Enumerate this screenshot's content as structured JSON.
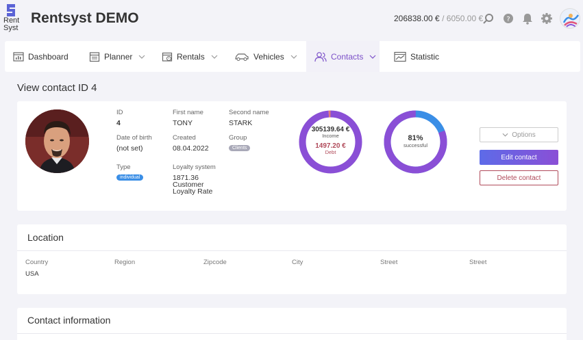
{
  "header": {
    "logo_line1": "Rent",
    "logo_line2": "Syst",
    "app_title": "Rentsyst DEMO",
    "balance_primary": "206838.00 €",
    "balance_separator": "/",
    "balance_secondary": "6050.00 €"
  },
  "nav": {
    "items": [
      {
        "label": "Dashboard",
        "icon": "dashboard-icon"
      },
      {
        "label": "Planner",
        "icon": "planner-icon"
      },
      {
        "label": "Rentals",
        "icon": "rentals-icon"
      },
      {
        "label": "Vehicles",
        "icon": "car-icon"
      },
      {
        "label": "Contacts",
        "icon": "contacts-icon"
      },
      {
        "label": "Statistic",
        "icon": "statistic-icon"
      }
    ],
    "active": "Contacts"
  },
  "page": {
    "title": "View contact ID 4"
  },
  "contact": {
    "id_label": "ID",
    "id_value": "4",
    "first_name_label": "First name",
    "first_name_value": "TONY",
    "second_name_label": "Second name",
    "second_name_value": "STARK",
    "dob_label": "Date of birth",
    "dob_value": "(not set)",
    "created_label": "Created",
    "created_value": "08.04.2022",
    "group_label": "Group",
    "group_value": "Clients",
    "type_label": "Type",
    "type_value": "individual",
    "loyalty_label": "Loyalty system",
    "loyalty_value_line1": "1871.36",
    "loyalty_value_line2": "Customer",
    "loyalty_value_line3": "Loyalty Rate"
  },
  "donut_income": {
    "income_value": "305139.64 €",
    "income_label": "Income",
    "debt_value": "1497.20 €",
    "debt_label": "Debt",
    "income_amount": 305139.64,
    "debt_amount": 1497.2,
    "color_income": "#8a4fd6",
    "color_debt": "#e07a7a"
  },
  "donut_success": {
    "percent_text": "81%",
    "label": "successful",
    "percent": 81,
    "color_success": "#8a4fd6",
    "color_rest": "#3a8ee6"
  },
  "actions": {
    "options_label": "Options",
    "edit_label": "Edit contact",
    "delete_label": "Delete contact"
  },
  "location": {
    "title": "Location",
    "columns": [
      "Country",
      "Region",
      "Zipcode",
      "City",
      "Street",
      "Street"
    ],
    "values": [
      "USA",
      "",
      "",
      "",
      "",
      ""
    ]
  },
  "contact_information": {
    "title": "Contact information"
  },
  "colors": {
    "accent": "#7b4fc8",
    "badge_blue": "#3a8ee6",
    "badge_gray": "#a9a9b8",
    "delete": "#b04a5a"
  }
}
